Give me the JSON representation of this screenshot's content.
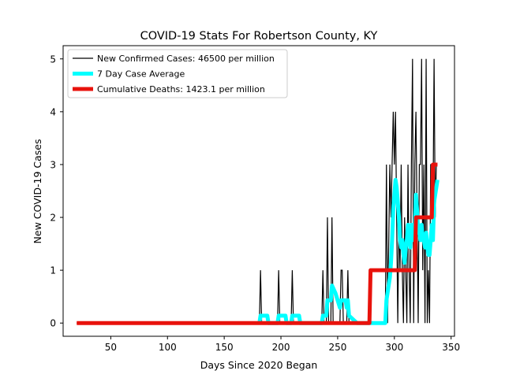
{
  "chart_data": {
    "type": "line",
    "title": "COVID-19 Stats For Robertson County, KY",
    "xlabel": "Days Since 2020 Began",
    "ylabel": "New COVID-19 Cases",
    "xlim": [
      8,
      353
    ],
    "ylim": [
      -0.25,
      5.25
    ],
    "xticks": [
      50,
      100,
      150,
      200,
      250,
      300,
      350
    ],
    "yticks": [
      0,
      1,
      2,
      3,
      4,
      5
    ],
    "legend_position": "top-left",
    "series": [
      {
        "name": "New Confirmed Cases: 46500 per million",
        "color": "#000000",
        "points": [
          [
            20,
            0
          ],
          [
            181,
            0
          ],
          [
            182,
            1
          ],
          [
            183,
            0
          ],
          [
            197,
            0
          ],
          [
            198,
            1
          ],
          [
            199,
            0
          ],
          [
            209,
            0
          ],
          [
            210,
            1
          ],
          [
            211,
            0
          ],
          [
            236,
            0
          ],
          [
            237,
            1
          ],
          [
            238,
            0
          ],
          [
            240,
            0
          ],
          [
            241,
            2
          ],
          [
            242,
            0
          ],
          [
            244,
            0
          ],
          [
            245,
            2
          ],
          [
            246,
            0
          ],
          [
            252,
            0
          ],
          [
            253,
            1
          ],
          [
            254,
            1
          ],
          [
            255,
            0
          ],
          [
            258,
            0
          ],
          [
            259,
            1
          ],
          [
            260,
            0
          ],
          [
            292,
            0
          ],
          [
            293,
            3
          ],
          [
            294,
            0
          ],
          [
            296,
            3
          ],
          [
            297,
            2
          ],
          [
            298,
            3
          ],
          [
            299,
            4
          ],
          [
            300,
            3
          ],
          [
            301,
            4
          ],
          [
            302,
            2
          ],
          [
            303,
            0
          ],
          [
            304,
            2
          ],
          [
            305,
            1
          ],
          [
            306,
            3
          ],
          [
            307,
            1
          ],
          [
            308,
            0
          ],
          [
            309,
            2
          ],
          [
            310,
            1
          ],
          [
            311,
            0
          ],
          [
            312,
            3
          ],
          [
            313,
            1
          ],
          [
            314,
            0
          ],
          [
            315,
            3
          ],
          [
            316,
            5
          ],
          [
            317,
            0
          ],
          [
            318,
            3
          ],
          [
            319,
            4
          ],
          [
            320,
            2
          ],
          [
            321,
            0
          ],
          [
            322,
            3
          ],
          [
            323,
            3
          ],
          [
            324,
            5
          ],
          [
            325,
            1
          ],
          [
            326,
            3
          ],
          [
            327,
            0
          ],
          [
            328,
            5
          ],
          [
            329,
            0
          ],
          [
            330,
            1
          ],
          [
            331,
            0
          ],
          [
            332,
            3
          ],
          [
            333,
            3
          ],
          [
            334,
            2
          ],
          [
            335,
            5
          ],
          [
            336,
            2
          ],
          [
            337,
            3
          ],
          [
            338,
            3
          ]
        ]
      },
      {
        "name": "7 Day Case Average",
        "color": "#00ffff",
        "points": [
          [
            181,
            0
          ],
          [
            182,
            0.14
          ],
          [
            188,
            0.14
          ],
          [
            189,
            0
          ],
          [
            197,
            0
          ],
          [
            198,
            0.14
          ],
          [
            204,
            0.14
          ],
          [
            205,
            0
          ],
          [
            209,
            0
          ],
          [
            210,
            0.14
          ],
          [
            216,
            0.14
          ],
          [
            217,
            0
          ],
          [
            236,
            0
          ],
          [
            237,
            0.14
          ],
          [
            240,
            0.14
          ],
          [
            241,
            0.43
          ],
          [
            244,
            0.43
          ],
          [
            245,
            0.71
          ],
          [
            248,
            0.57
          ],
          [
            252,
            0.29
          ],
          [
            253,
            0.43
          ],
          [
            256,
            0.43
          ],
          [
            257,
            0.43
          ],
          [
            258,
            0.29
          ],
          [
            259,
            0.43
          ],
          [
            260,
            0.14
          ],
          [
            267,
            0
          ],
          [
            288,
            0
          ],
          [
            292,
            0
          ],
          [
            293,
            0.43
          ],
          [
            296,
            0.86
          ],
          [
            297,
            1.14
          ],
          [
            298,
            1.57
          ],
          [
            299,
            2.14
          ],
          [
            300,
            2.43
          ],
          [
            301,
            2.71
          ],
          [
            302,
            2.57
          ],
          [
            303,
            2.29
          ],
          [
            304,
            2.0
          ],
          [
            305,
            1.57
          ],
          [
            306,
            1.43
          ],
          [
            307,
            1.57
          ],
          [
            308,
            1.29
          ],
          [
            309,
            1.14
          ],
          [
            310,
            1.43
          ],
          [
            311,
            1.57
          ],
          [
            312,
            1.86
          ],
          [
            313,
            1.57
          ],
          [
            314,
            1.43
          ],
          [
            315,
            1.86
          ],
          [
            316,
            1.71
          ],
          [
            317,
            1.57
          ],
          [
            318,
            1.86
          ],
          [
            319,
            2.43
          ],
          [
            320,
            2.14
          ],
          [
            321,
            1.71
          ],
          [
            322,
            1.71
          ],
          [
            323,
            1.57
          ],
          [
            324,
            1.86
          ],
          [
            325,
            1.57
          ],
          [
            326,
            1.57
          ],
          [
            327,
            1.43
          ],
          [
            328,
            1.71
          ],
          [
            329,
            1.43
          ],
          [
            330,
            1.29
          ],
          [
            331,
            1.29
          ],
          [
            332,
            1.57
          ],
          [
            333,
            1.86
          ],
          [
            334,
            1.57
          ],
          [
            335,
            2.29
          ],
          [
            336,
            2.43
          ],
          [
            337,
            2.57
          ],
          [
            338,
            2.71
          ]
        ]
      },
      {
        "name": "Cumulative Deaths: 1423.1 per million",
        "color": "#e8120c",
        "points": [
          [
            20,
            0
          ],
          [
            278,
            0
          ],
          [
            279,
            1
          ],
          [
            318,
            1
          ],
          [
            319,
            2
          ],
          [
            333,
            2
          ],
          [
            334,
            3
          ],
          [
            338,
            3
          ]
        ]
      }
    ]
  }
}
